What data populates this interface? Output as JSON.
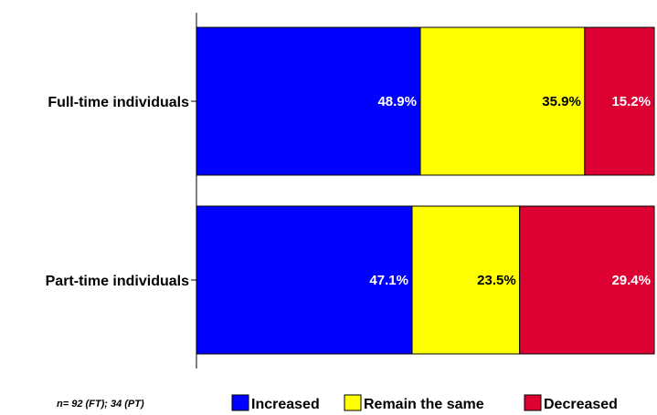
{
  "chart_data": {
    "type": "bar",
    "orientation": "horizontal",
    "stacked": true,
    "percent": true,
    "categories": [
      "Full-time individuals",
      "Part-time individuals"
    ],
    "series": [
      {
        "name": "Increased",
        "values": [
          48.9,
          47.1
        ],
        "labels": [
          "48.9%",
          "47.1%"
        ],
        "color": "#0000ff",
        "label_color": "#ffffff"
      },
      {
        "name": "Remain the same",
        "values": [
          35.9,
          23.5
        ],
        "labels": [
          "35.9%",
          "23.5%"
        ],
        "color": "#ffff00",
        "label_color": "#000000"
      },
      {
        "name": "Decreased",
        "values": [
          15.2,
          29.4
        ],
        "labels": [
          "15.2%",
          "29.4%"
        ],
        "color": "#dd0033",
        "label_color": "#ffffff"
      }
    ],
    "xlim": [
      0,
      100
    ],
    "grid": false,
    "legend_position": "bottom"
  },
  "note": "n= 92 (FT); 34 (PT)"
}
